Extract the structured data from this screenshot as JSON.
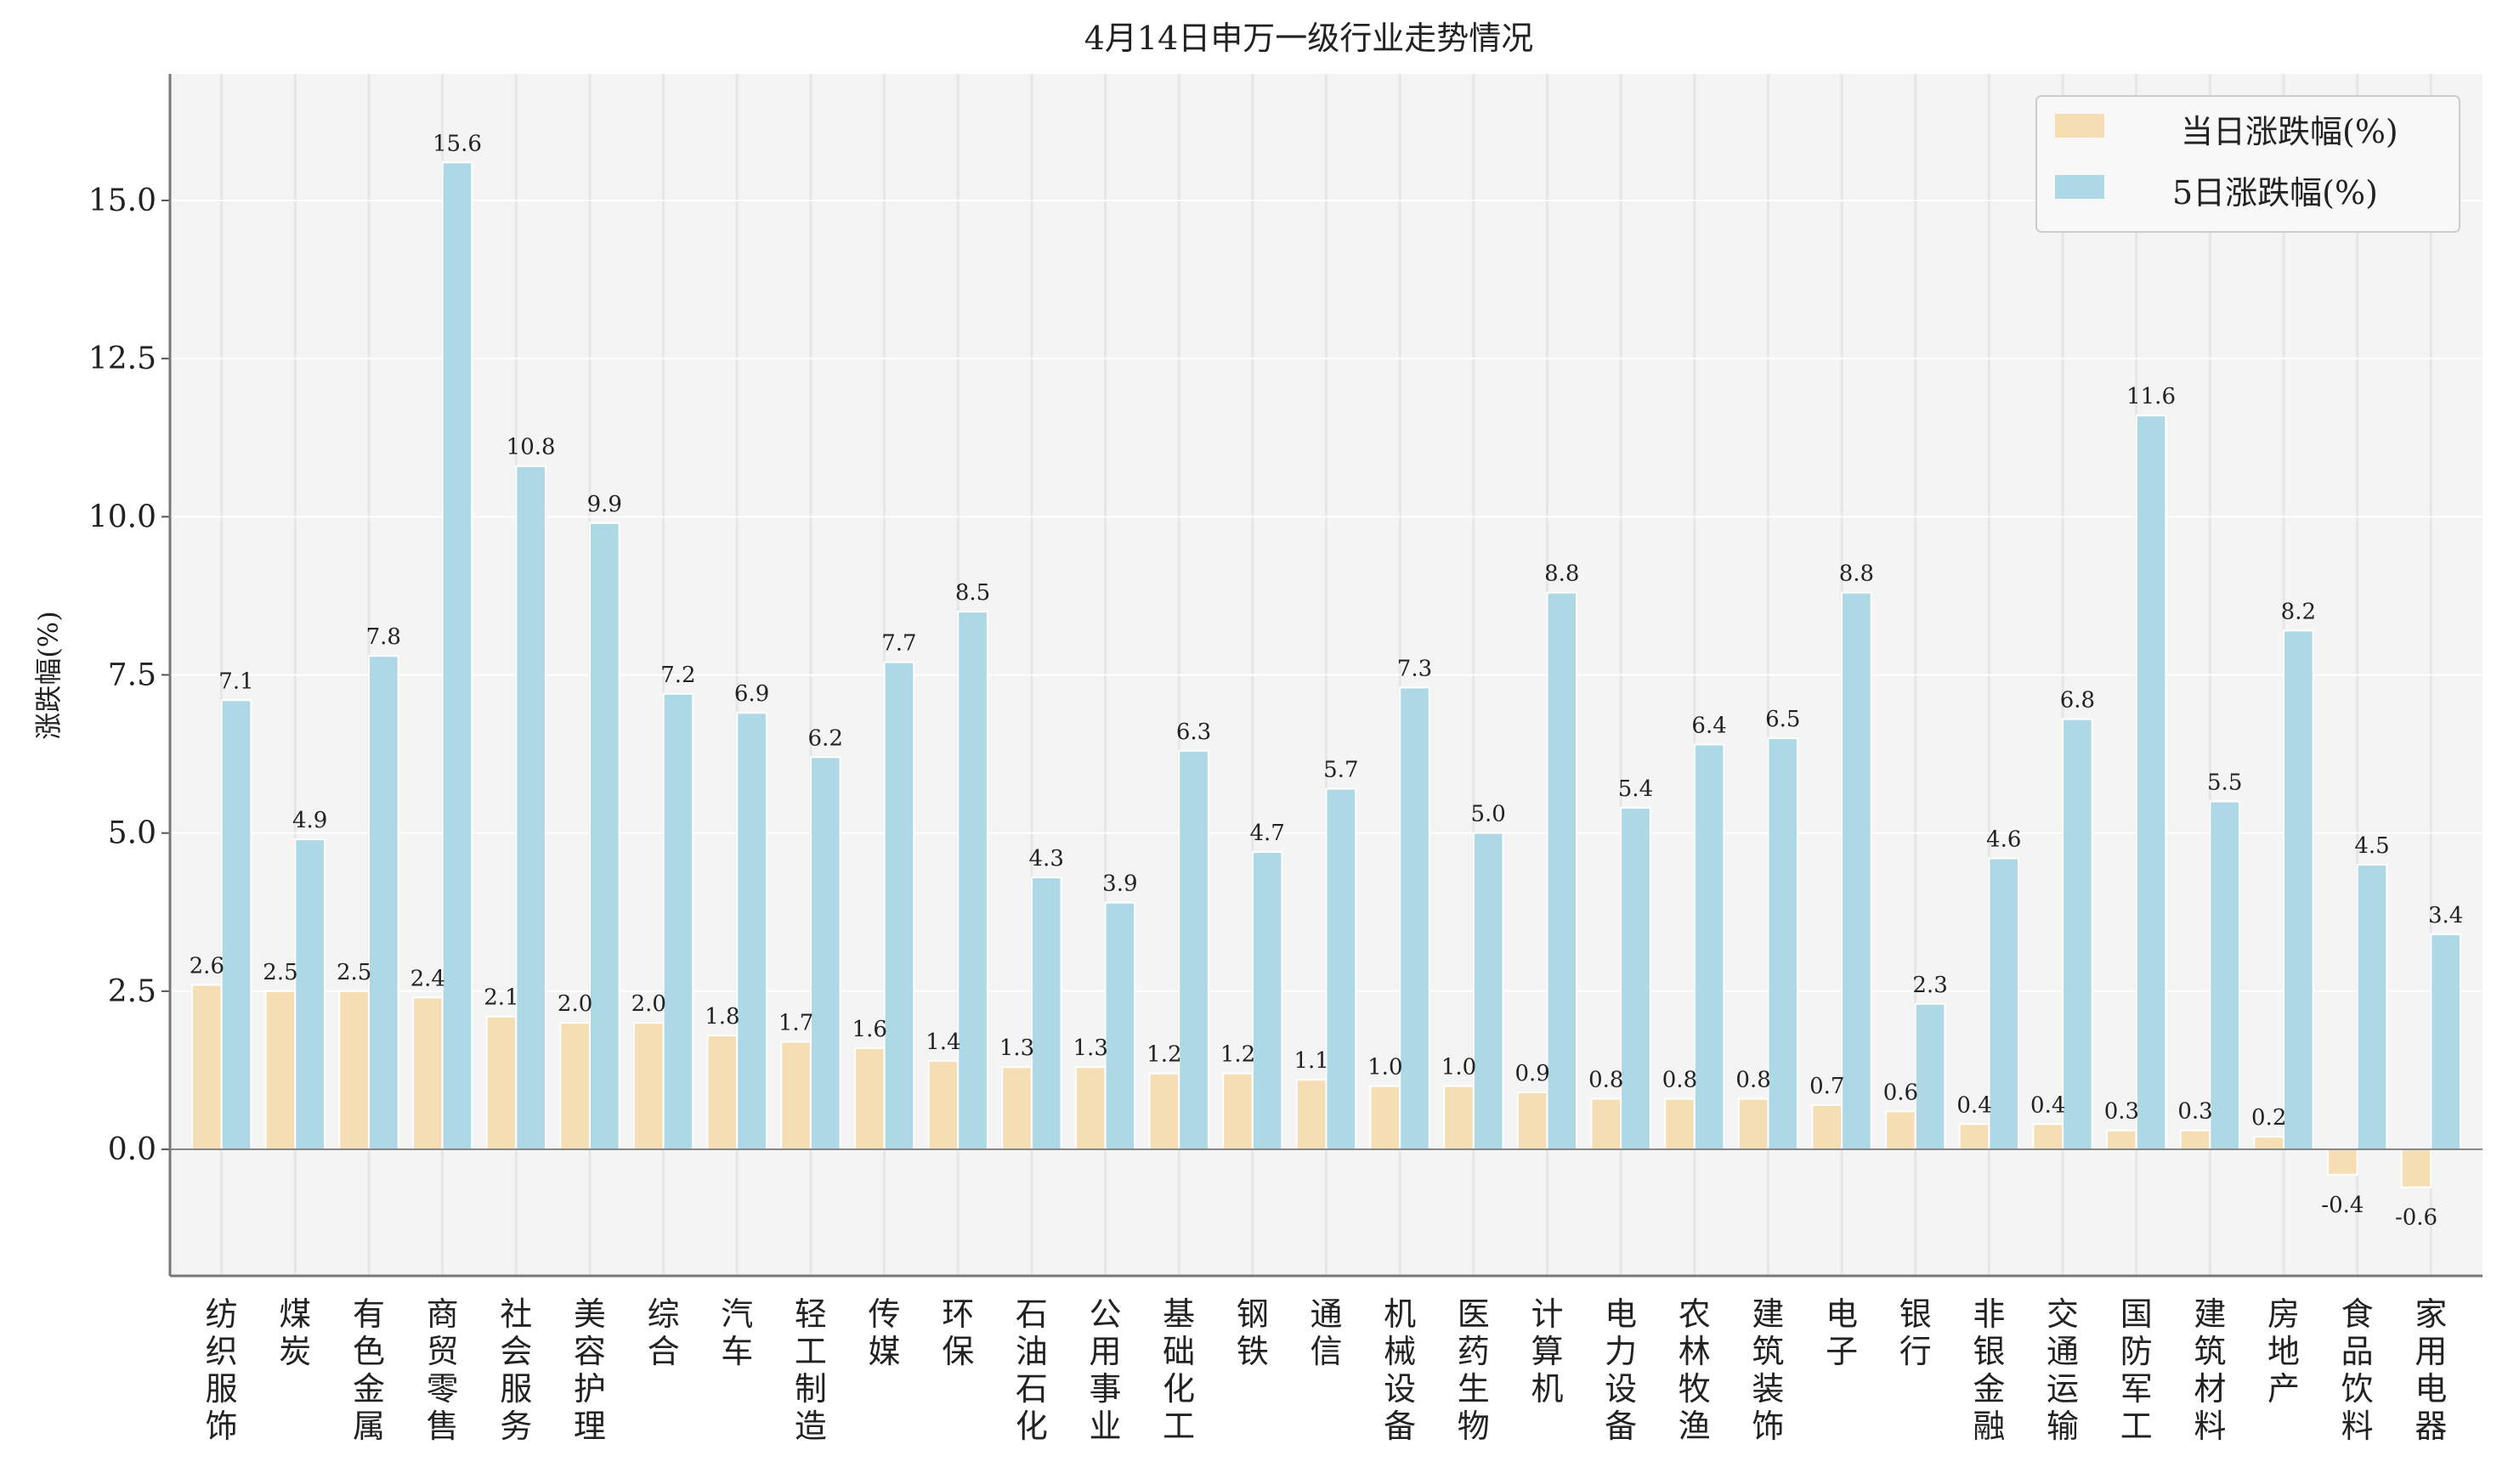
{
  "chart_data": {
    "type": "bar",
    "title": "4月14日申万一级行业走势情况",
    "xlabel": "",
    "ylabel": "涨跌幅(%)",
    "ylim": [
      -2,
      17
    ],
    "yticks": [
      0.0,
      2.5,
      5.0,
      7.5,
      10.0,
      12.5,
      15.0
    ],
    "grid": true,
    "legend_position": "top-right",
    "categories": [
      "纺织服饰",
      "煤炭",
      "有色金属",
      "商贸零售",
      "社会服务",
      "美容护理",
      "综合",
      "汽车",
      "轻工制造",
      "传媒",
      "环保",
      "石油石化",
      "公用事业",
      "基础化工",
      "钢铁",
      "通信",
      "机械设备",
      "医药生物",
      "计算机",
      "电力设备",
      "农林牧渔",
      "建筑装饰",
      "电子",
      "银行",
      "非银金融",
      "交通运输",
      "国防军工",
      "建筑材料",
      "房地产",
      "食品饮料",
      "家用电器"
    ],
    "series": [
      {
        "name": "当日涨跌幅(%)",
        "color": "#F5DEB3",
        "values": [
          2.6,
          2.5,
          2.5,
          2.4,
          2.1,
          2.0,
          2.0,
          1.8,
          1.7,
          1.6,
          1.4,
          1.3,
          1.3,
          1.2,
          1.2,
          1.1,
          1.0,
          1.0,
          0.9,
          0.8,
          0.8,
          0.8,
          0.7,
          0.6,
          0.4,
          0.4,
          0.3,
          0.3,
          0.2,
          -0.4,
          -0.6
        ]
      },
      {
        "name": "5日涨跌幅(%)",
        "color": "#ADD8E6",
        "values": [
          7.1,
          4.9,
          7.8,
          15.6,
          10.8,
          9.9,
          7.2,
          6.9,
          6.2,
          7.7,
          8.5,
          4.3,
          3.9,
          6.3,
          4.7,
          5.7,
          7.3,
          5.0,
          8.8,
          5.4,
          6.4,
          6.5,
          8.8,
          2.3,
          4.6,
          6.8,
          11.6,
          5.5,
          8.2,
          4.5,
          3.4
        ]
      }
    ]
  }
}
